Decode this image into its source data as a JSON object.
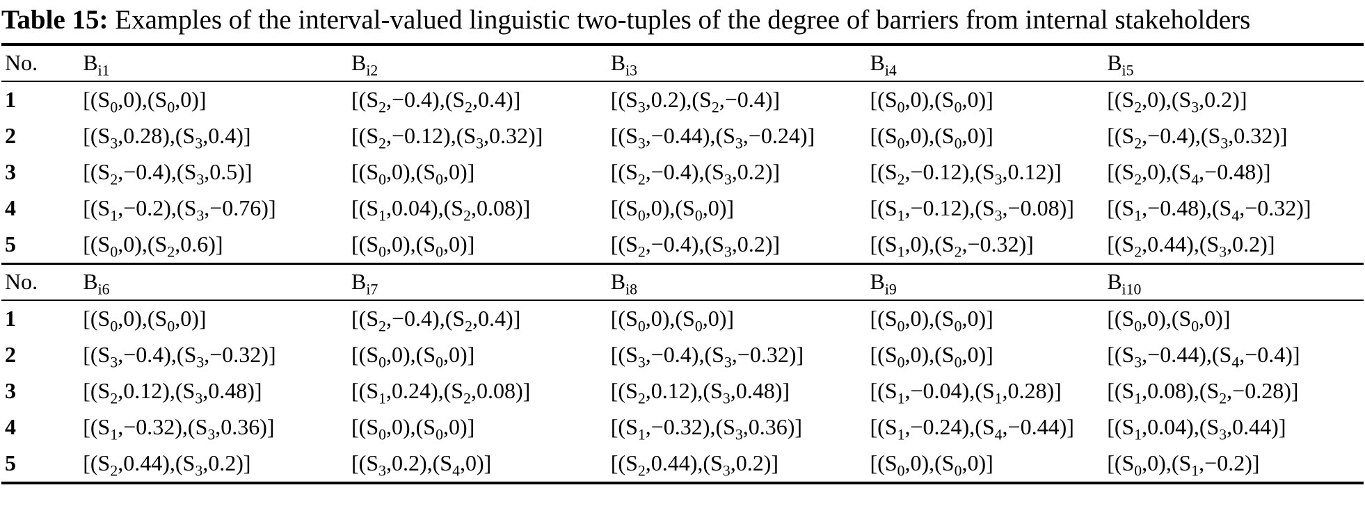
{
  "title": {
    "label": "Table 15:",
    "text": " Examples of the interval-valued linguistic two-tuples of the degree of barriers from internal stakeholders"
  },
  "sections": [
    {
      "headers": [
        "No.",
        "B_{i1}",
        "B_{i2}",
        "B_{i3}",
        "B_{i4}",
        "B_{i5}"
      ],
      "rows": [
        {
          "no": "1",
          "cells": [
            "[(S_{0},0),(S_{0},0)]",
            "[(S_{2},−0.4),(S_{2},0.4)]",
            "[(S_{3},0.2),(S_{2},−0.4)]",
            "[(S_{0},0),(S_{0},0)]",
            "[(S_{2},0),(S_{3},0.2)]"
          ]
        },
        {
          "no": "2",
          "cells": [
            "[(S_{3},0.28),(S_{3},0.4)]",
            "[(S_{2},−0.12),(S_{3},0.32)]",
            "[(S_{3},−0.44),(S_{3},−0.24)]",
            "[(S_{0},0),(S_{0},0)]",
            "[(S_{2},−0.4),(S_{3},0.32)]"
          ]
        },
        {
          "no": "3",
          "cells": [
            "[(S_{2},−0.4),(S_{3},0.5)]",
            "[(S_{0},0),(S_{0},0)]",
            "[(S_{2},−0.4),(S_{3},0.2)]",
            "[(S_{2},−0.12),(S_{3},0.12)]",
            "[(S_{2},0),(S_{4},−0.48)]"
          ]
        },
        {
          "no": "4",
          "cells": [
            "[(S_{1},−0.2),(S_{3},−0.76)]",
            "[(S_{1},0.04),(S_{2},0.08)]",
            "[(S_{0},0),(S_{0},0)]",
            "[(S_{1},−0.12),(S_{3},−0.08)]",
            "[(S_{1},−0.48),(S_{4},−0.32)]"
          ]
        },
        {
          "no": "5",
          "cells": [
            "[(S_{0},0),(S_{2},0.6)]",
            "[(S_{0},0),(S_{0},0)]",
            "[(S_{2},−0.4),(S_{3},0.2)]",
            "[(S_{1},0),(S_{2},−0.32)]",
            "[(S_{2},0.44),(S_{3},0.2)]"
          ]
        }
      ]
    },
    {
      "headers": [
        "No.",
        "B_{i6}",
        "B_{i7}",
        "B_{i8}",
        "B_{i9}",
        "B_{i10}"
      ],
      "rows": [
        {
          "no": "1",
          "cells": [
            "[(S_{0},0),(S_{0},0)]",
            "[(S_{2},−0.4),(S_{2},0.4)]",
            "[(S_{0},0),(S_{0},0)]",
            "[(S_{0},0),(S_{0},0)]",
            "[(S_{0},0),(S_{0},0)]"
          ]
        },
        {
          "no": "2",
          "cells": [
            "[(S_{3},−0.4),(S_{3},−0.32)]",
            "[(S_{0},0),(S_{0},0)]",
            "[(S_{3},−0.4),(S_{3},−0.32)]",
            "[(S_{0},0),(S_{0},0)]",
            "[(S_{3},−0.44),(S_{4},−0.4)]"
          ]
        },
        {
          "no": "3",
          "cells": [
            "[(S_{2},0.12),(S_{3},0.48)]",
            "[(S_{1},0.24),(S_{2},0.08)]",
            "[(S_{2},0.12),(S_{3},0.48)]",
            "[(S_{1},−0.04),(S_{1},0.28)]",
            "[(S_{1},0.08),(S_{2},−0.28)]"
          ]
        },
        {
          "no": "4",
          "cells": [
            "[(S_{1},−0.32),(S_{3},0.36)]",
            "[(S_{0},0),(S_{0},0)]",
            "[(S_{1},−0.32),(S_{3},0.36)]",
            "[(S_{1},−0.24),(S_{4},−0.44)]",
            "[(S_{1},0.04),(S_{3},0.44)]"
          ]
        },
        {
          "no": "5",
          "cells": [
            "[(S_{2},0.44),(S_{3},0.2)]",
            "[(S_{3},0.2),(S_{4},0)]",
            "[(S_{2},0.44),(S_{3},0.2)]",
            "[(S_{0},0),(S_{0},0)]",
            "[(S_{0},0),(S_{1},−0.2)]"
          ]
        }
      ]
    }
  ]
}
